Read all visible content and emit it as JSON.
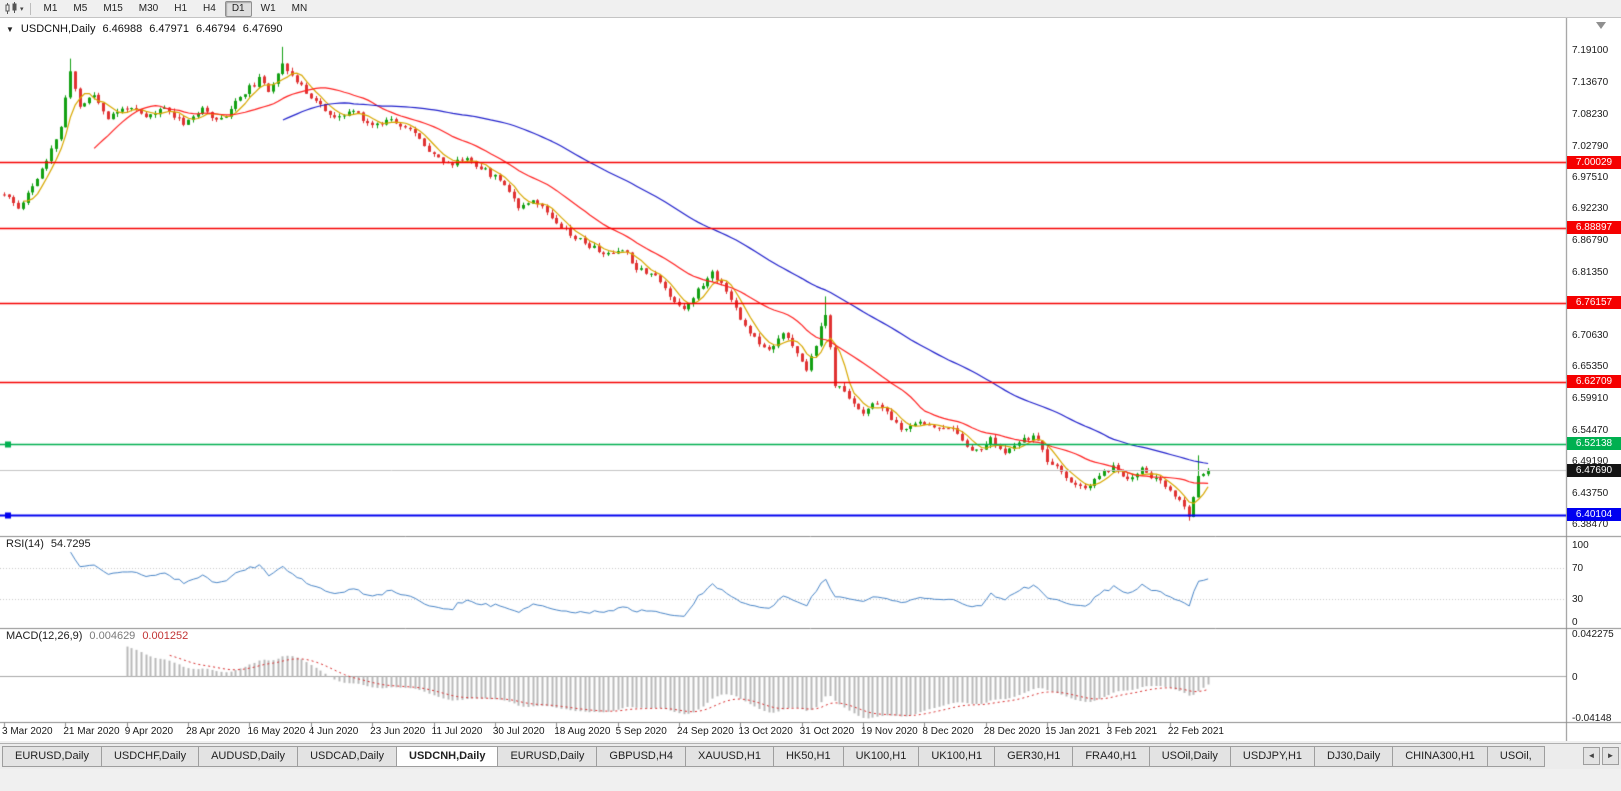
{
  "toolbar": {
    "chart_type_icon": "candlestick-chart",
    "dropdown_icon": "▾",
    "timeframes": [
      "M1",
      "M5",
      "M15",
      "M30",
      "H1",
      "H4",
      "D1",
      "W1",
      "MN"
    ],
    "active_timeframe": "D1"
  },
  "chart_data": {
    "type": "candlestick",
    "title": {
      "arrow": "▼",
      "symbol": "USDCNH,Daily",
      "open": "6.46988",
      "high": "6.47971",
      "low": "6.46794",
      "close": "6.47690"
    },
    "price_axis": {
      "min": 6.365,
      "max": 7.245,
      "labels": [
        "7.19100",
        "7.13670",
        "7.08230",
        "7.02790",
        "6.97510",
        "6.92230",
        "6.86790",
        "6.81350",
        "6.75910",
        "6.70630",
        "6.65350",
        "6.59910",
        "6.54470",
        "6.49190",
        "6.43750",
        "6.38470"
      ]
    },
    "horizontal_lines": [
      {
        "price": 7.00029,
        "label": "7.00029",
        "color": "#f50000",
        "width": 1.5
      },
      {
        "price": 6.88897,
        "label": "6.88897",
        "color": "#f50000",
        "width": 1.5
      },
      {
        "price": 6.76157,
        "label": "6.76157",
        "color": "#f50000",
        "width": 1.5
      },
      {
        "price": 6.62709,
        "label": "6.62709",
        "color": "#f50000",
        "width": 1.5
      },
      {
        "price": 6.52138,
        "label": "6.52138",
        "color": "#00b050",
        "width": 1.5,
        "handle": true
      },
      {
        "price": 6.40104,
        "label": "6.40104",
        "color": "#0000f0",
        "width": 2,
        "handle": true
      }
    ],
    "current_price": {
      "value": 6.4769,
      "label": "6.47690",
      "tag_color": "#141414",
      "line_color": "#c4c4c4"
    },
    "candles": {
      "count": 256,
      "seed": 11,
      "noise": 0.005,
      "wick": 0.006,
      "up_color": "#13a113",
      "down_color": "#e03232",
      "anchors": [
        [
          0,
          6.945
        ],
        [
          3,
          6.922
        ],
        [
          6,
          6.96
        ],
        [
          9,
          7.0
        ],
        [
          12,
          7.06
        ],
        [
          14,
          7.155
        ],
        [
          16,
          7.095
        ],
        [
          19,
          7.115
        ],
        [
          22,
          7.075
        ],
        [
          26,
          7.095
        ],
        [
          30,
          7.075
        ],
        [
          34,
          7.092
        ],
        [
          38,
          7.068
        ],
        [
          42,
          7.088
        ],
        [
          46,
          7.072
        ],
        [
          50,
          7.112
        ],
        [
          54,
          7.14
        ],
        [
          56,
          7.12
        ],
        [
          59,
          7.17
        ],
        [
          62,
          7.135
        ],
        [
          66,
          7.105
        ],
        [
          70,
          7.072
        ],
        [
          74,
          7.088
        ],
        [
          78,
          7.062
        ],
        [
          82,
          7.075
        ],
        [
          86,
          7.055
        ],
        [
          90,
          7.022
        ],
        [
          94,
          6.995
        ],
        [
          98,
          7.008
        ],
        [
          102,
          6.985
        ],
        [
          106,
          6.965
        ],
        [
          109,
          6.925
        ],
        [
          112,
          6.938
        ],
        [
          116,
          6.908
        ],
        [
          120,
          6.878
        ],
        [
          124,
          6.858
        ],
        [
          128,
          6.842
        ],
        [
          131,
          6.855
        ],
        [
          134,
          6.822
        ],
        [
          138,
          6.808
        ],
        [
          141,
          6.772
        ],
        [
          144,
          6.752
        ],
        [
          147,
          6.782
        ],
        [
          150,
          6.812
        ],
        [
          153,
          6.785
        ],
        [
          156,
          6.732
        ],
        [
          159,
          6.702
        ],
        [
          162,
          6.682
        ],
        [
          165,
          6.712
        ],
        [
          168,
          6.672
        ],
        [
          170,
          6.648
        ],
        [
          172,
          6.692
        ],
        [
          174,
          6.742
        ],
        [
          176,
          6.622
        ],
        [
          179,
          6.602
        ],
        [
          182,
          6.572
        ],
        [
          185,
          6.592
        ],
        [
          188,
          6.562
        ],
        [
          191,
          6.542
        ],
        [
          194,
          6.562
        ],
        [
          197,
          6.548
        ],
        [
          200,
          6.552
        ],
        [
          203,
          6.528
        ],
        [
          206,
          6.508
        ],
        [
          209,
          6.528
        ],
        [
          212,
          6.505
        ],
        [
          215,
          6.522
        ],
        [
          218,
          6.538
        ],
        [
          221,
          6.492
        ],
        [
          224,
          6.472
        ],
        [
          227,
          6.452
        ],
        [
          229,
          6.442
        ],
        [
          232,
          6.468
        ],
        [
          235,
          6.482
        ],
        [
          238,
          6.462
        ],
        [
          241,
          6.478
        ],
        [
          244,
          6.462
        ],
        [
          247,
          6.442
        ],
        [
          249,
          6.422
        ],
        [
          251,
          6.402
        ],
        [
          253,
          6.468
        ],
        [
          255,
          6.477
        ]
      ],
      "spikes": [
        {
          "i": 14,
          "high": 7.176
        },
        {
          "i": 59,
          "high": 7.196
        },
        {
          "i": 174,
          "high": 6.772
        },
        {
          "i": 251,
          "low": 6.391
        },
        {
          "i": 253,
          "high": 6.502
        }
      ]
    },
    "moving_averages": [
      {
        "period": 5,
        "color": "#d8a800"
      },
      {
        "period": 20,
        "color": "#ff2020"
      },
      {
        "period": 60,
        "color": "#2020cc"
      }
    ],
    "rsi": {
      "name": "RSI(14)",
      "value": "54.7295",
      "period": 14,
      "color": "#4a86c8",
      "axis_labels": [
        "100",
        "70",
        "30",
        "0"
      ],
      "level_lines": [
        70,
        30
      ],
      "level_color": "#c8c8c8"
    },
    "macd": {
      "name": "MACD(12,26,9)",
      "main_value": "0.004629",
      "signal_value": "0.001252",
      "fast": 12,
      "slow": 26,
      "signal": 9,
      "hist_color": "#b8b8b8",
      "signal_color": "#d93030",
      "axis_labels": [
        "0.042275",
        "0",
        "-0.04148"
      ]
    },
    "date_axis": {
      "labels": [
        {
          "text": "3 Mar 2020",
          "i": 0
        },
        {
          "text": "21 Mar 2020",
          "i": 13
        },
        {
          "text": "9 Apr 2020",
          "i": 26
        },
        {
          "text": "28 Apr 2020",
          "i": 39
        },
        {
          "text": "16 May 2020",
          "i": 52
        },
        {
          "text": "4 Jun 2020",
          "i": 65
        },
        {
          "text": "23 Jun 2020",
          "i": 78
        },
        {
          "text": "11 Jul 2020",
          "i": 91
        },
        {
          "text": "30 Jul 2020",
          "i": 104
        },
        {
          "text": "18 Aug 2020",
          "i": 117
        },
        {
          "text": "5 Sep 2020",
          "i": 130
        },
        {
          "text": "24 Sep 2020",
          "i": 143
        },
        {
          "text": "13 Oct 2020",
          "i": 156
        },
        {
          "text": "31 Oct 2020",
          "i": 169
        },
        {
          "text": "19 Nov 2020",
          "i": 182
        },
        {
          "text": "8 Dec 2020",
          "i": 195
        },
        {
          "text": "28 Dec 2020",
          "i": 208
        },
        {
          "text": "15 Jan 2021",
          "i": 221
        },
        {
          "text": "3 Feb 2021",
          "i": 234
        },
        {
          "text": "22 Feb 2021",
          "i": 247
        }
      ]
    }
  },
  "tabs": {
    "items": [
      "EURUSD,Daily",
      "USDCHF,Daily",
      "AUDUSD,Daily",
      "USDCAD,Daily",
      "USDCNH,Daily",
      "EURUSD,Daily",
      "GBPUSD,H4",
      "XAUUSD,H1",
      "HK50,H1",
      "UK100,H1",
      "UK100,H1",
      "GER30,H1",
      "FRA40,H1",
      "USOil,Daily",
      "USDJPY,H1",
      "DJ30,Daily",
      "CHINA300,H1",
      "USOil,"
    ],
    "active_index": 4,
    "scroll_left_icon": "◄",
    "scroll_right_icon": "►"
  }
}
